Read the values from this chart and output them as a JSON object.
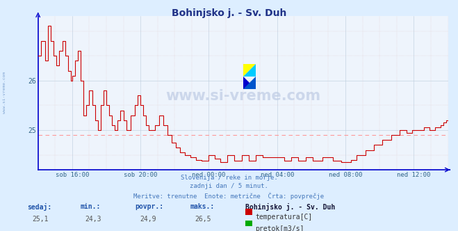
{
  "title": "Bohinjsko j. - Sv. Duh",
  "bg_color": "#ddeeff",
  "plot_bg_color": "#eef4fc",
  "line_color": "#cc0000",
  "avg_line_color": "#ff9999",
  "axis_color": "#0000cc",
  "text_color": "#4477bb",
  "label_color": "#336688",
  "title_color": "#223388",
  "ylim_min": 24.2,
  "ylim_max": 27.3,
  "avg_value": 24.9,
  "subtitle1": "Slovenija / reke in morje.",
  "subtitle2": "zadnji dan / 5 minut.",
  "subtitle3": "Meritve: trenutne  Enote: metrične  Črta: povprečje",
  "sedaj_label": "sedaj:",
  "min_label": "min.:",
  "povpr_label": "povpr.:",
  "maks_label": "maks.:",
  "sedaj_val": "25,1",
  "min_val": "24,3",
  "povpr_val": "24,9",
  "maks_val": "26,5",
  "station_label": "Bohinjsko j. - Sv. Duh",
  "legend1_color": "#cc0000",
  "legend1_label": "temperatura[C]",
  "legend2_color": "#00aa00",
  "legend2_label": "pretok[m3/s]",
  "watermark": "www.si-vreme.com",
  "grid_major_color": "#bbccdd",
  "grid_minor_color": "#ccddee"
}
